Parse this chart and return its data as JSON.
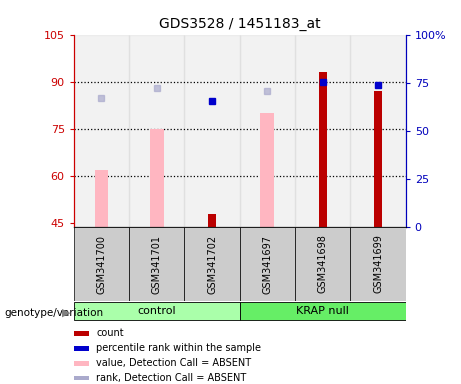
{
  "title": "GDS3528 / 1451183_at",
  "categories": [
    "GSM341700",
    "GSM341701",
    "GSM341702",
    "GSM341697",
    "GSM341698",
    "GSM341699"
  ],
  "ylim_left": [
    44,
    105
  ],
  "ylim_right": [
    0,
    100
  ],
  "yticks_left": [
    45,
    60,
    75,
    90,
    105
  ],
  "ytick_labels_left": [
    "45",
    "60",
    "75",
    "90",
    "105"
  ],
  "yticks_right": [
    0,
    25,
    50,
    75,
    100
  ],
  "ytick_labels_right": [
    "0",
    "25",
    "50",
    "75",
    "100%"
  ],
  "hlines": [
    60,
    75,
    90
  ],
  "bar_pink_values": [
    62,
    75,
    44,
    80,
    44,
    44
  ],
  "bar_red_values": [
    44,
    44,
    48,
    44,
    93,
    87
  ],
  "dot_blue_left_vals": [
    null,
    null,
    84,
    null,
    90,
    89
  ],
  "dot_lavender_left_vals": [
    85,
    88,
    null,
    87,
    null,
    null
  ],
  "bar_pink_color": "#FFB6C1",
  "bar_red_color": "#BB0000",
  "dot_blue_color": "#0000CC",
  "dot_lavender_color": "#AAAACC",
  "left_axis_color": "#CC0000",
  "right_axis_color": "#0000BB",
  "bar_width": 0.25,
  "group_info": [
    {
      "label": "control",
      "start": 0,
      "end": 2,
      "color": "#AAFFAA"
    },
    {
      "label": "KRAP null",
      "start": 3,
      "end": 5,
      "color": "#66EE66"
    }
  ],
  "legend_items": [
    {
      "label": "count",
      "color": "#BB0000",
      "type": "rect"
    },
    {
      "label": "percentile rank within the sample",
      "color": "#0000CC",
      "type": "rect"
    },
    {
      "label": "value, Detection Call = ABSENT",
      "color": "#FFB6C1",
      "type": "rect"
    },
    {
      "label": "rank, Detection Call = ABSENT",
      "color": "#AAAACC",
      "type": "rect"
    }
  ]
}
